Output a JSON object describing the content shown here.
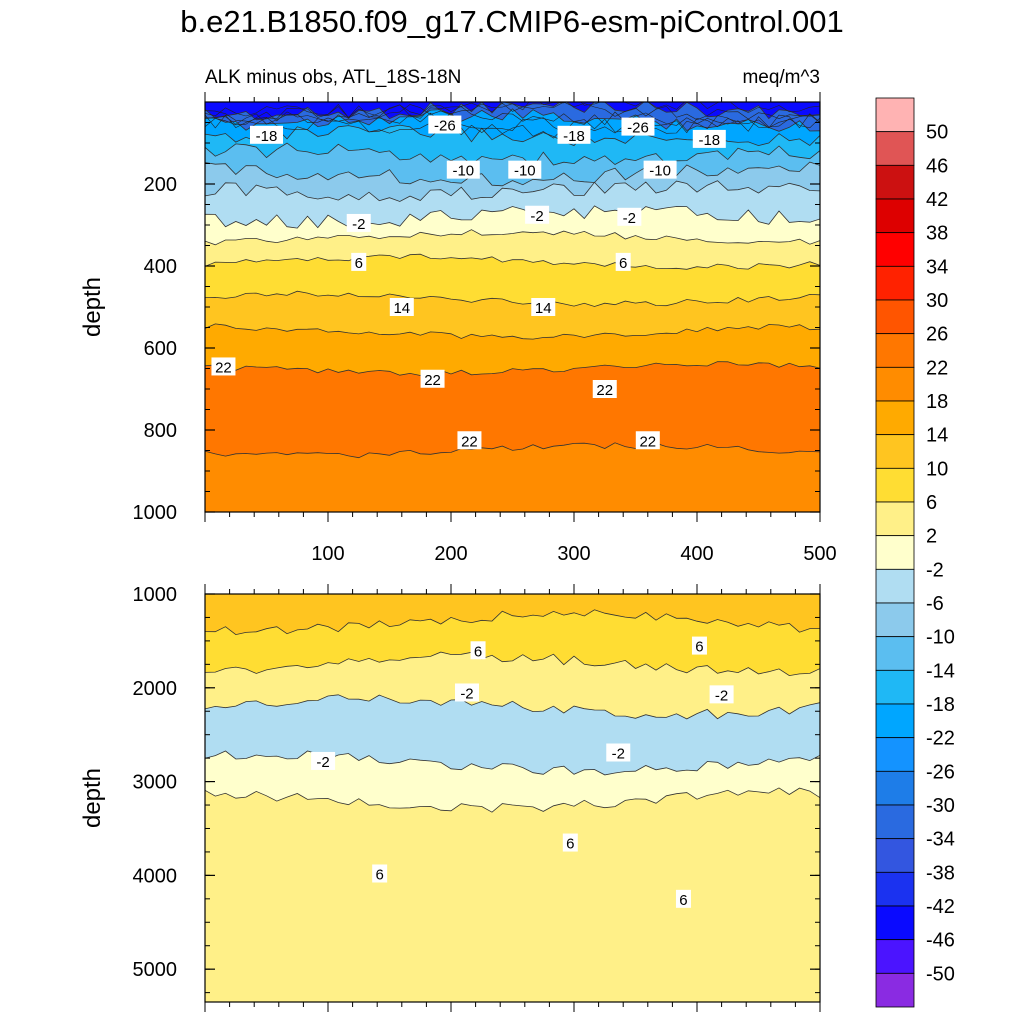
{
  "title": "b.e21.B1850.f09_g17.CMIP6-esm-piControl.001",
  "chart_data": [
    {
      "type": "contour",
      "left_label": "ALK minus obs, ATL_18S-18N",
      "right_label": "meq/m^3",
      "xlabel": "",
      "ylabel": "depth",
      "xlim": [
        0,
        500
      ],
      "ylim": [
        1000,
        0
      ],
      "xticks": [
        100,
        200,
        300,
        400,
        500
      ],
      "yticks": [
        200,
        400,
        600,
        800,
        1000
      ],
      "bands": [
        {
          "depth_top": 0,
          "depth_bottom": 20,
          "value": -46
        },
        {
          "depth_top": 20,
          "depth_bottom": 45,
          "value": -34
        },
        {
          "depth_top": 45,
          "depth_bottom": 85,
          "value": -22
        },
        {
          "depth_top": 85,
          "depth_bottom": 130,
          "value": -18
        },
        {
          "depth_top": 130,
          "depth_bottom": 175,
          "value": -14
        },
        {
          "depth_top": 175,
          "depth_bottom": 215,
          "value": -10
        },
        {
          "depth_top": 215,
          "depth_bottom": 280,
          "value": -6
        },
        {
          "depth_top": 280,
          "depth_bottom": 330,
          "value": 0
        },
        {
          "depth_top": 330,
          "depth_bottom": 390,
          "value": 4
        },
        {
          "depth_top": 390,
          "depth_bottom": 480,
          "value": 8
        },
        {
          "depth_top": 480,
          "depth_bottom": 560,
          "value": 12
        },
        {
          "depth_top": 560,
          "depth_bottom": 650,
          "value": 16
        },
        {
          "depth_top": 650,
          "depth_bottom": 850,
          "value": 24
        },
        {
          "depth_top": 850,
          "depth_bottom": 1000,
          "value": 20
        }
      ],
      "contour_labels": [
        {
          "x": 50,
          "depth": 80,
          "text": "-18"
        },
        {
          "x": 195,
          "depth": 55,
          "text": "-26"
        },
        {
          "x": 300,
          "depth": 80,
          "text": "-18"
        },
        {
          "x": 352,
          "depth": 60,
          "text": "-26"
        },
        {
          "x": 410,
          "depth": 90,
          "text": "-18"
        },
        {
          "x": 210,
          "depth": 165,
          "text": "-10"
        },
        {
          "x": 260,
          "depth": 165,
          "text": "-10"
        },
        {
          "x": 370,
          "depth": 165,
          "text": "-10"
        },
        {
          "x": 125,
          "depth": 295,
          "text": "-2"
        },
        {
          "x": 270,
          "depth": 275,
          "text": "-2"
        },
        {
          "x": 345,
          "depth": 280,
          "text": "-2"
        },
        {
          "x": 125,
          "depth": 390,
          "text": "6"
        },
        {
          "x": 340,
          "depth": 390,
          "text": "6"
        },
        {
          "x": 160,
          "depth": 500,
          "text": "14"
        },
        {
          "x": 275,
          "depth": 500,
          "text": "14"
        },
        {
          "x": 15,
          "depth": 645,
          "text": "22"
        },
        {
          "x": 185,
          "depth": 675,
          "text": "22"
        },
        {
          "x": 325,
          "depth": 700,
          "text": "22"
        },
        {
          "x": 215,
          "depth": 825,
          "text": "22"
        },
        {
          "x": 360,
          "depth": 825,
          "text": "22"
        }
      ]
    },
    {
      "type": "contour",
      "xlabel": "",
      "ylabel": "depth",
      "xlim": [
        0,
        500
      ],
      "ylim": [
        5350,
        1000
      ],
      "yticks": [
        1000,
        2000,
        3000,
        4000,
        5000
      ],
      "bands": [
        {
          "depth_top": 1000,
          "depth_bottom": 1300,
          "value": 12
        },
        {
          "depth_top": 1300,
          "depth_bottom": 1750,
          "value": 8
        },
        {
          "depth_top": 1750,
          "depth_bottom": 2200,
          "value": 4
        },
        {
          "depth_top": 2200,
          "depth_bottom": 2800,
          "value": -4
        },
        {
          "depth_top": 2800,
          "depth_bottom": 3200,
          "value": 0
        },
        {
          "depth_top": 3200,
          "depth_bottom": 5350,
          "value": 4
        }
      ],
      "contour_labels": [
        {
          "x": 222,
          "depth": 1600,
          "text": "6"
        },
        {
          "x": 402,
          "depth": 1550,
          "text": "6"
        },
        {
          "x": 213,
          "depth": 2050,
          "text": "-2"
        },
        {
          "x": 420,
          "depth": 2070,
          "text": "-2"
        },
        {
          "x": 96,
          "depth": 2780,
          "text": "-2"
        },
        {
          "x": 336,
          "depth": 2690,
          "text": "-2"
        },
        {
          "x": 297,
          "depth": 3650,
          "text": "6"
        },
        {
          "x": 142,
          "depth": 3980,
          "text": "6"
        },
        {
          "x": 389,
          "depth": 4250,
          "text": "6"
        }
      ]
    }
  ],
  "colorbar": {
    "labels": [
      "50",
      "46",
      "42",
      "38",
      "34",
      "30",
      "26",
      "22",
      "18",
      "14",
      "10",
      "6",
      "2",
      "-2",
      "-6",
      "-10",
      "-14",
      "-18",
      "-22",
      "-26",
      "-30",
      "-34",
      "-38",
      "-42",
      "-46",
      "-50"
    ],
    "colors": [
      "#ffb3b3",
      "#e05555",
      "#cc1111",
      "#dd0000",
      "#ff0000",
      "#ff2200",
      "#ff5500",
      "#ff7700",
      "#ff8c00",
      "#ffaa00",
      "#ffc520",
      "#ffdd33",
      "#fff088",
      "#ffffcc",
      "#b0ddf2",
      "#8ccaec",
      "#5bbef0",
      "#1fb8f5",
      "#00a6ff",
      "#1493ff",
      "#1e7de8",
      "#2a6ae0",
      "#3356e0",
      "#1b32f0",
      "#0a0aff",
      "#4b14ff",
      "#8a2be2"
    ]
  }
}
